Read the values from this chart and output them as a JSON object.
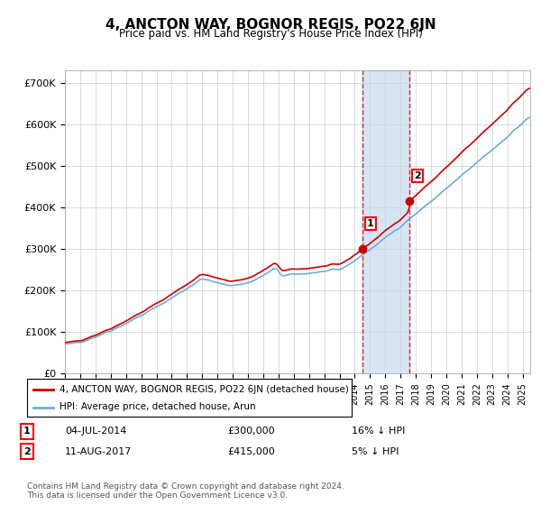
{
  "title": "4, ANCTON WAY, BOGNOR REGIS, PO22 6JN",
  "subtitle": "Price paid vs. HM Land Registry's House Price Index (HPI)",
  "ylabel_ticks": [
    "£0",
    "£100K",
    "£200K",
    "£300K",
    "£400K",
    "£500K",
    "£600K",
    "£700K"
  ],
  "ylim": [
    0,
    730000
  ],
  "xlim_start": 1995.0,
  "xlim_end": 2025.5,
  "legend_line1": "4, ANCTON WAY, BOGNOR REGIS, PO22 6JN (detached house)",
  "legend_line2": "HPI: Average price, detached house, Arun",
  "transaction1_label": "1",
  "transaction1_date": "04-JUL-2014",
  "transaction1_price": "£300,000",
  "transaction1_rel": "16% ↓ HPI",
  "transaction1_x": 2014.5,
  "transaction1_y": 300000,
  "transaction2_label": "2",
  "transaction2_date": "11-AUG-2017",
  "transaction2_price": "£415,000",
  "transaction2_rel": "5% ↓ HPI",
  "transaction2_x": 2017.6,
  "transaction2_y": 415000,
  "hpi_color": "#6baed6",
  "price_color": "#cc0000",
  "highlight_color": "#c6d9f0",
  "footer": "Contains HM Land Registry data © Crown copyright and database right 2024.\nThis data is licensed under the Open Government Licence v3.0.",
  "background_color": "#ffffff",
  "grid_color": "#cccccc"
}
